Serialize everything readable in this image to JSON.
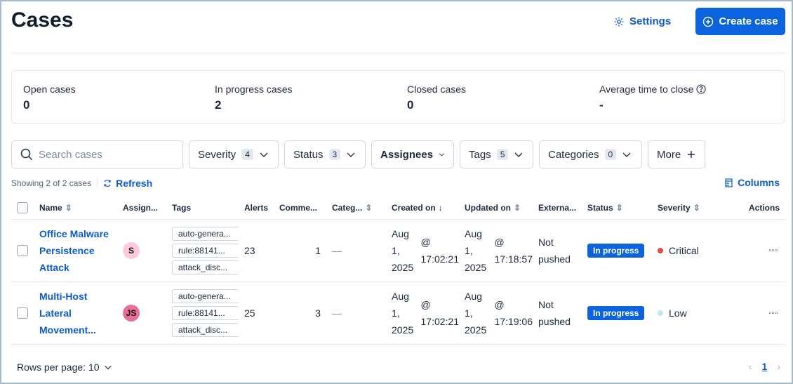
{
  "header": {
    "title": "Cases",
    "settings_label": "Settings",
    "create_label": "Create case"
  },
  "stats": [
    {
      "label": "Open cases",
      "value": "0"
    },
    {
      "label": "In progress cases",
      "value": "2"
    },
    {
      "label": "Closed cases",
      "value": "0"
    },
    {
      "label": "Average time to close",
      "value": "-"
    }
  ],
  "search": {
    "placeholder": "Search cases"
  },
  "filters": [
    {
      "label": "Severity",
      "count": "4"
    },
    {
      "label": "Status",
      "count": "3"
    },
    {
      "label": "Assignees"
    },
    {
      "label": "Tags",
      "count": "5"
    },
    {
      "label": "Categories",
      "count": "0"
    },
    {
      "label": "More"
    }
  ],
  "toolbar": {
    "showing": "Showing 2 of 2 cases",
    "refresh": "Refresh",
    "columns": "Columns"
  },
  "table": {
    "headers": [
      "Name",
      "Assign...",
      "Tags",
      "Alerts",
      "Comme...",
      "Categ...",
      "Created on",
      "Updated on",
      "Externa...",
      "Status",
      "Severity",
      "Actions"
    ],
    "rows": [
      {
        "name": "Office Malware Persistence Attack",
        "assignee": "S",
        "assignee_color": "#ffc9dd",
        "tags": [
          "auto-genera...",
          "rule:88141...",
          "attack_disc..."
        ],
        "alerts": "23",
        "comments": "1",
        "category": "—",
        "created": [
          "Aug 1, 2025",
          "@ 17:02:21"
        ],
        "updated": [
          "Aug 1, 2025",
          "@ 17:18:57"
        ],
        "external": "Not pushed",
        "status": "In progress",
        "severity": "Critical",
        "severity_color": "#e7483f"
      },
      {
        "name": "Multi-Host Lateral Movement...",
        "assignee": "JS",
        "assignee_color": "#e7709a",
        "tags": [
          "auto-genera...",
          "rule:88141...",
          "attack_disc..."
        ],
        "alerts": "25",
        "comments": "3",
        "category": "—",
        "created": [
          "Aug 1, 2025",
          "@ 17:02:21"
        ],
        "updated": [
          "Aug 1, 2025",
          "@ 17:19:06"
        ],
        "external": "Not pushed",
        "status": "In progress",
        "severity": "Low",
        "severity_color": "#bfe6f2"
      }
    ]
  },
  "footer": {
    "rows_per_page": "Rows per page: 10",
    "page": "1"
  }
}
